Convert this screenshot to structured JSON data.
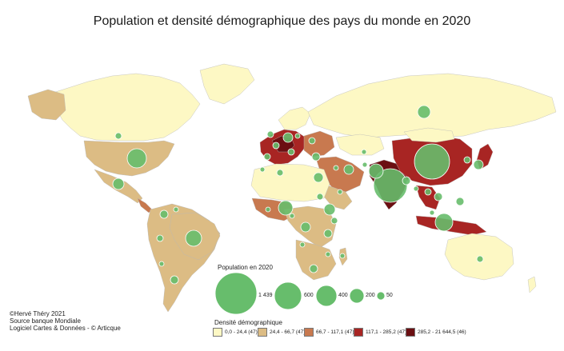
{
  "title": "Population et densité démographique des pays du monde en 2020",
  "credits": [
    "©Hervé Théry 2021",
    "Source banque Mondiale",
    "Logiciel  Cartes & Données - © Articque"
  ],
  "population_legend": {
    "title": "Population en 2020",
    "values": [
      "1 439",
      "600",
      "400",
      "200",
      "50"
    ]
  },
  "density_legend": {
    "title": "Densité démographique",
    "classes": [
      {
        "label": "0,0 - 24,4 (47)",
        "color": "#fdf8c4"
      },
      {
        "label": "24,4 - 66,7 (47)",
        "color": "#dcbc84"
      },
      {
        "label": "66,7 - 117,1 (47)",
        "color": "#c8794f"
      },
      {
        "label": "117,1 - 285,2 (47)",
        "color": "#a82523"
      },
      {
        "label": "285,2 - 21 644,5 (46)",
        "color": "#6b0f12"
      }
    ]
  },
  "colors": {
    "bubble_fill": "#67bd6c",
    "bubble_stroke": "#ffffff",
    "ocean": "#ffffff",
    "border": "#bdbdbd"
  }
}
